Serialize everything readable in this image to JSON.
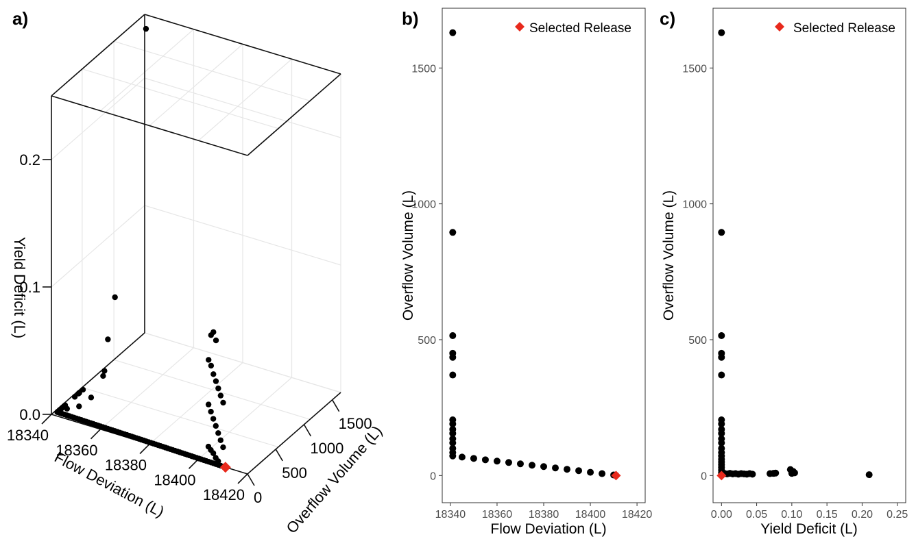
{
  "colors": {
    "points": "#000000",
    "highlight": "#e8291c",
    "panel_border": "#333333",
    "grid": "#ebebeb",
    "tick_text": "#4d4d4d"
  },
  "chart_data": [
    {
      "id": "a",
      "panel_tag": "a)",
      "type": "scatter3d",
      "xlabel": "Flow Deviation (L)",
      "ylabel": "Overflow Volume (L)",
      "zlabel": "Yield Deficit (L)",
      "x_ticks": [
        "18340",
        "18360",
        "18380",
        "18400",
        "18420"
      ],
      "y_ticks": [
        "0",
        "500",
        "1000",
        "1500"
      ],
      "z_ticks": [
        "0.0",
        "0.1",
        "0.2"
      ],
      "xlim": [
        18340,
        18420
      ],
      "ylim": [
        0,
        1650
      ],
      "zlim": [
        0,
        0.25
      ],
      "series": [
        {
          "marker": "circle",
          "color": "#000000",
          "points": [
            [
              18341,
              1630,
              0.24
            ],
            [
              18341,
              895,
              0.0
            ],
            [
              18341,
              515,
              0.0
            ],
            [
              18341,
              450,
              0.0
            ],
            [
              18341,
              435,
              0.0
            ],
            [
              18341,
              370,
              0.0
            ],
            [
              18341,
              200,
              0.0
            ],
            [
              18341,
              180,
              0.0
            ],
            [
              18341,
              160,
              0.0
            ],
            [
              18341,
              140,
              0.0
            ],
            [
              18341,
              120,
              0.0
            ],
            [
              18341,
              100,
              0.0
            ],
            [
              18341,
              80,
              0.0
            ],
            [
              18345,
              60,
              0.005
            ],
            [
              18350,
              55,
              0.01
            ],
            [
              18355,
              52,
              0.02
            ],
            [
              18360,
              47,
              0.04
            ],
            [
              18362,
              45,
              0.07
            ],
            [
              18365,
              40,
              0.105
            ],
            [
              18405,
              5,
              0.1
            ],
            [
              18406,
              4,
              0.103
            ],
            [
              18407,
              6,
              0.097
            ],
            [
              18404,
              5,
              0.08
            ],
            [
              18405,
              6,
              0.076
            ],
            [
              18406,
              4,
              0.07
            ],
            [
              18407,
              5,
              0.065
            ],
            [
              18408,
              3,
              0.06
            ],
            [
              18409,
              2,
              0.055
            ],
            [
              18410,
              3,
              0.05
            ],
            [
              18404,
              4,
              0.045
            ],
            [
              18405,
              3,
              0.04
            ],
            [
              18406,
              2,
              0.035
            ],
            [
              18407,
              3,
              0.03
            ],
            [
              18408,
              2,
              0.025
            ],
            [
              18409,
              1,
              0.02
            ],
            [
              18410,
              2,
              0.015
            ],
            [
              18404,
              2,
              0.012
            ],
            [
              18405,
              1,
              0.01
            ],
            [
              18406,
              2,
              0.008
            ],
            [
              18407,
              1,
              0.005
            ],
            [
              18408,
              1,
              0.003
            ]
          ]
        },
        {
          "name": "Selected Release",
          "marker": "diamond",
          "color": "#e8291c",
          "points": [
            [
              18411,
              0,
              0.0
            ]
          ]
        }
      ]
    },
    {
      "id": "b",
      "panel_tag": "b)",
      "type": "scatter",
      "xlabel": "Flow Deviation (L)",
      "ylabel": "Overflow Volume (L)",
      "x_ticks": [
        "18340",
        "18360",
        "18380",
        "18400",
        "18420"
      ],
      "y_ticks": [
        "0",
        "500",
        "1000",
        "1500"
      ],
      "xlim": [
        18336.5,
        18423.5
      ],
      "ylim": [
        -100,
        1720
      ],
      "legend": {
        "position": "top-right",
        "label": "Selected Release"
      },
      "series": [
        {
          "marker": "circle",
          "color": "#000000",
          "points": [
            [
              18341,
              1630
            ],
            [
              18341,
              895
            ],
            [
              18341,
              515
            ],
            [
              18341,
              450
            ],
            [
              18341,
              435
            ],
            [
              18341,
              370
            ],
            [
              18341,
              205
            ],
            [
              18341,
              190
            ],
            [
              18341,
              170
            ],
            [
              18341,
              155
            ],
            [
              18341,
              135
            ],
            [
              18341,
              120
            ],
            [
              18341,
              100
            ],
            [
              18341,
              85
            ],
            [
              18341,
              72
            ],
            [
              18345,
              68
            ],
            [
              18350,
              63
            ],
            [
              18355,
              58
            ],
            [
              18360,
              53
            ],
            [
              18365,
              48
            ],
            [
              18370,
              43
            ],
            [
              18375,
              38
            ],
            [
              18380,
              33
            ],
            [
              18385,
              28
            ],
            [
              18390,
              23
            ],
            [
              18395,
              18
            ],
            [
              18400,
              12
            ],
            [
              18405,
              7
            ],
            [
              18410,
              2
            ],
            [
              18411,
              0
            ]
          ]
        },
        {
          "name": "Selected Release",
          "marker": "diamond",
          "color": "#e8291c",
          "points": [
            [
              18411,
              0
            ]
          ]
        }
      ]
    },
    {
      "id": "c",
      "panel_tag": "c)",
      "type": "scatter",
      "xlabel": "Yield Deficit (L)",
      "ylabel": "Overflow Volume (L)",
      "x_ticks": [
        "0.00",
        "0.05",
        "0.10",
        "0.15",
        "0.20",
        "0.25"
      ],
      "y_ticks": [
        "0",
        "500",
        "1000",
        "1500"
      ],
      "xlim": [
        -0.012,
        0.262
      ],
      "ylim": [
        -100,
        1720
      ],
      "legend": {
        "position": "top-right",
        "label": "Selected Release"
      },
      "series": [
        {
          "marker": "circle",
          "color": "#000000",
          "points": [
            [
              0,
              1630
            ],
            [
              0,
              895
            ],
            [
              0,
              515
            ],
            [
              0,
              450
            ],
            [
              0,
              435
            ],
            [
              0,
              370
            ],
            [
              0,
              205
            ],
            [
              0,
              190
            ],
            [
              0,
              170
            ],
            [
              0,
              155
            ],
            [
              0,
              135
            ],
            [
              0,
              120
            ],
            [
              0,
              100
            ],
            [
              0,
              85
            ],
            [
              0,
              72
            ],
            [
              0,
              60
            ],
            [
              0,
              50
            ],
            [
              0,
              40
            ],
            [
              0,
              30
            ],
            [
              0,
              20
            ],
            [
              0,
              10
            ],
            [
              0,
              3
            ],
            [
              0.004,
              8
            ],
            [
              0.008,
              6
            ],
            [
              0.012,
              8
            ],
            [
              0.016,
              6
            ],
            [
              0.02,
              7
            ],
            [
              0.024,
              5
            ],
            [
              0.028,
              7
            ],
            [
              0.032,
              6
            ],
            [
              0.036,
              5
            ],
            [
              0.04,
              7
            ],
            [
              0.044,
              5
            ],
            [
              0.069,
              7
            ],
            [
              0.074,
              8
            ],
            [
              0.077,
              9
            ],
            [
              0.098,
              22
            ],
            [
              0.1,
              8
            ],
            [
              0.102,
              15
            ],
            [
              0.104,
              10
            ],
            [
              0.21,
              3
            ]
          ]
        },
        {
          "name": "Selected Release",
          "marker": "diamond",
          "color": "#e8291c",
          "points": [
            [
              0,
              0
            ]
          ]
        }
      ]
    }
  ]
}
